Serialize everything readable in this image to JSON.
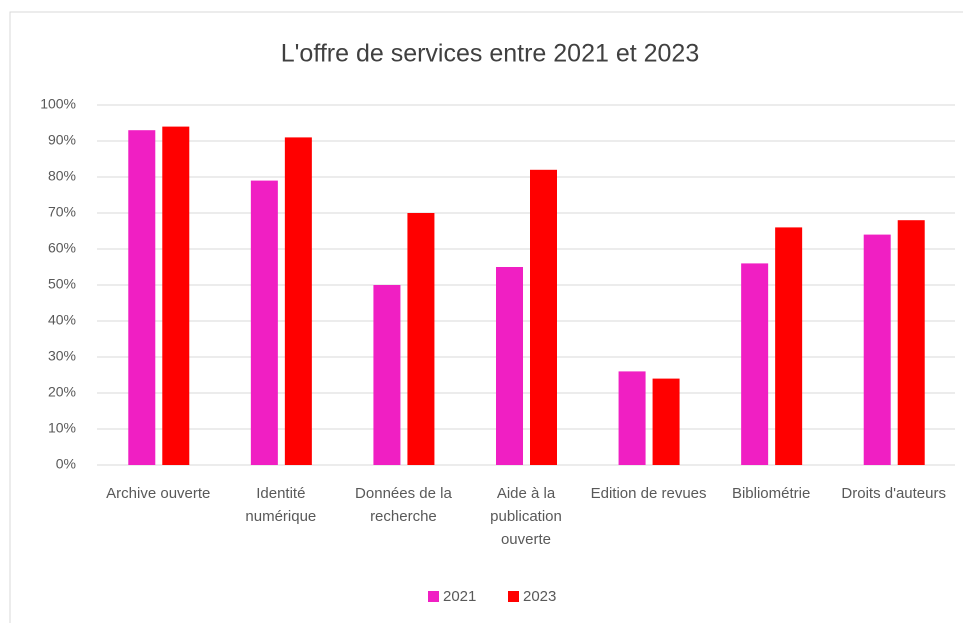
{
  "chart_data": {
    "type": "bar",
    "title": "L'offre de services entre 2021 et 2023",
    "categories": [
      "Archive ouverte",
      "Identité numérique",
      "Données de la recherche",
      "Aide à la publication ouverte",
      "Edition de revues",
      "Bibliométrie",
      "Droits d'auteurs"
    ],
    "series": [
      {
        "name": "2021",
        "color": "#f01fc3",
        "values": [
          93,
          79,
          50,
          55,
          26,
          56,
          64
        ]
      },
      {
        "name": "2023",
        "color": "#ff0000",
        "values": [
          94,
          91,
          70,
          82,
          24,
          66,
          68
        ]
      }
    ],
    "ylim": [
      0,
      100
    ],
    "yticks": [
      {
        "value": 0,
        "label": "0%"
      },
      {
        "value": 10,
        "label": "10%"
      },
      {
        "value": 20,
        "label": "20%"
      },
      {
        "value": 30,
        "label": "30%"
      },
      {
        "value": 40,
        "label": "40%"
      },
      {
        "value": 50,
        "label": "50%"
      },
      {
        "value": 60,
        "label": "60%"
      },
      {
        "value": 70,
        "label": "70%"
      },
      {
        "value": 80,
        "label": "80%"
      },
      {
        "value": 90,
        "label": "90%"
      },
      {
        "value": 100,
        "label": "100%"
      }
    ],
    "grid": true,
    "legend": "bottom"
  }
}
